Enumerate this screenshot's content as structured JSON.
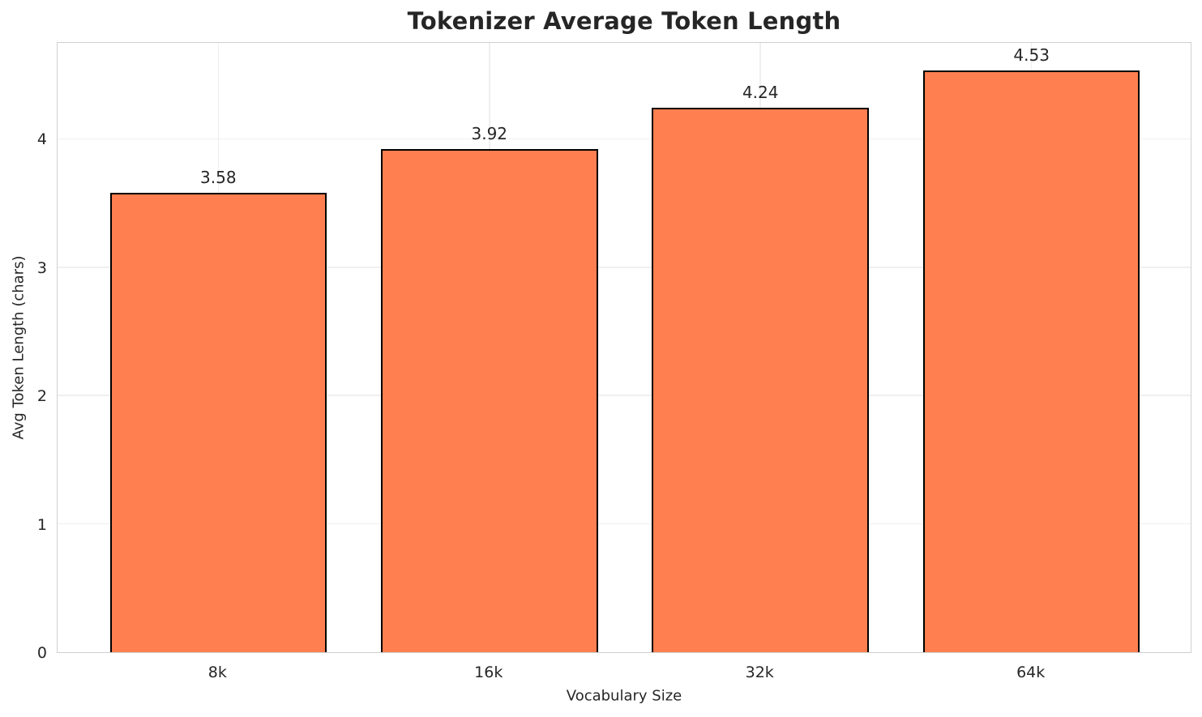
{
  "chart_data": {
    "type": "bar",
    "title": "Tokenizer Average Token Length",
    "xlabel": "Vocabulary Size",
    "ylabel": "Avg Token Length (chars)",
    "categories": [
      "8k",
      "16k",
      "32k",
      "64k"
    ],
    "values": [
      3.58,
      3.92,
      4.24,
      4.53
    ],
    "value_labels": [
      "3.58",
      "3.92",
      "4.24",
      "4.53"
    ],
    "yticks": [
      0,
      1,
      2,
      3,
      4
    ],
    "ylim": [
      0,
      4.76
    ],
    "bar_width": 0.8,
    "grid": true,
    "legend": "none",
    "colors": {
      "bar_fill": "#FF7F50",
      "bar_edge": "#000000",
      "grid_line": "#efefef",
      "spine": "#d0d0d0",
      "text": "#262626",
      "background": "#ffffff"
    }
  }
}
